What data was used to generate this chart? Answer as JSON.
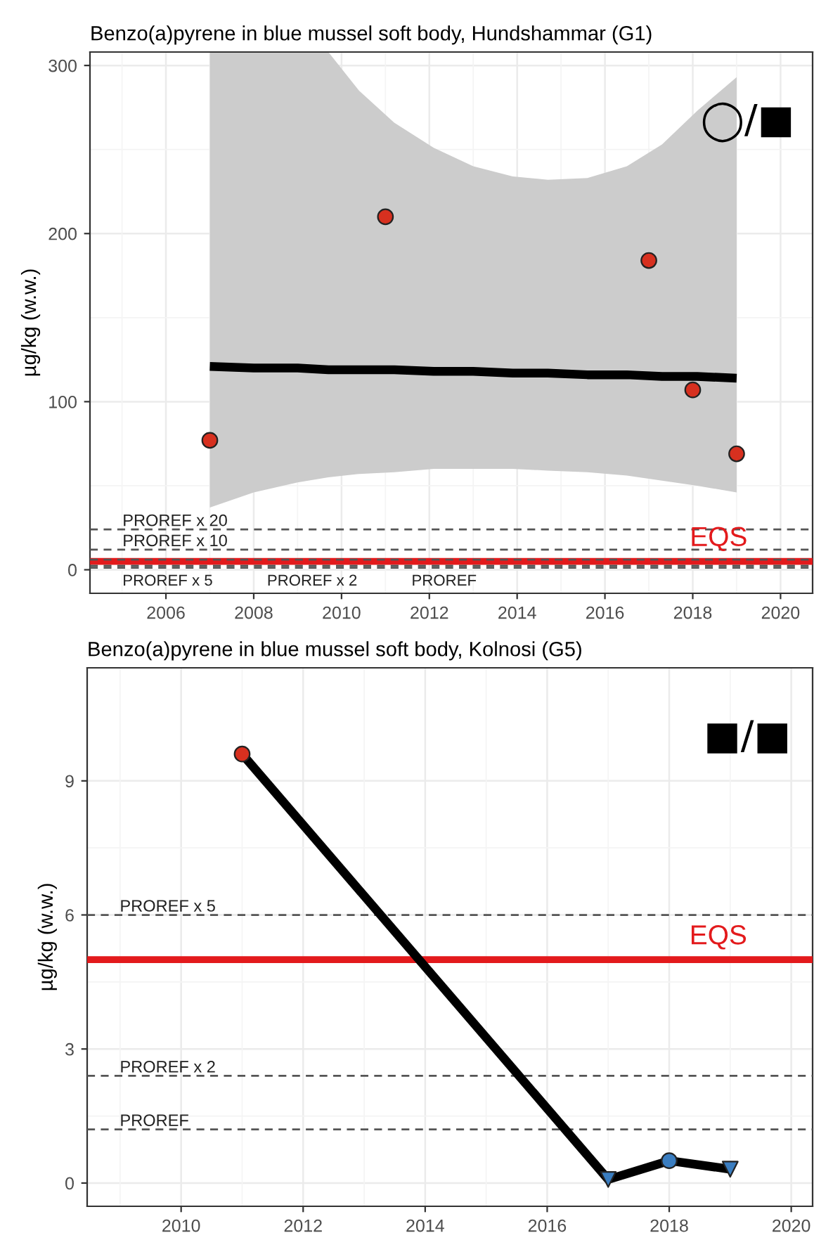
{
  "chart_data": [
    {
      "type": "scatter",
      "title": "Benzo(a)pyrene in blue mussel soft body, Hundshammar (G1)",
      "ylabel": "µg/kg (w.w.)",
      "xlim": [
        2004.27,
        2020.73
      ],
      "ylim": [
        -14,
        308
      ],
      "xticks": [
        2006,
        2008,
        2010,
        2012,
        2014,
        2016,
        2018,
        2020
      ],
      "yticks": [
        0,
        100,
        200,
        300
      ],
      "grid": true,
      "annotations": [
        "◯/■"
      ],
      "series": [
        {
          "type": "line",
          "color": "#000000",
          "marker": "none",
          "line_style": "solid",
          "x": [
            2007,
            2008,
            2009,
            2009.7,
            2010.4,
            2011.2,
            2012.1,
            2013,
            2013.9,
            2014.7,
            2015.6,
            2016.5,
            2017.3,
            2018.1,
            2019
          ],
          "values": [
            121,
            120,
            120,
            119,
            119,
            119,
            118,
            118,
            117,
            117,
            116,
            116,
            115,
            115,
            114
          ],
          "lower": [
            37,
            46,
            52,
            55,
            57,
            58,
            60,
            60,
            60,
            59,
            58,
            56,
            53,
            50,
            46
          ],
          "upper": [
            308,
            308,
            308,
            308,
            285,
            266,
            251,
            240,
            234,
            232,
            233,
            240,
            253,
            273,
            293
          ]
        },
        {
          "color": "#d7301f",
          "marker": "circle",
          "x": [
            2007,
            2011,
            2017,
            2018,
            2019
          ],
          "values": [
            77,
            210,
            184,
            107,
            69
          ]
        }
      ],
      "ref_lines": [
        {
          "axis": "y",
          "value": 24,
          "label": "PROREF x 20",
          "color": "#555555",
          "line_style": "dashed"
        },
        {
          "axis": "y",
          "value": 12,
          "label": "PROREF x 10",
          "color": "#555555",
          "line_style": "dashed"
        },
        {
          "axis": "y",
          "value": 6,
          "label": "PROREF x 5",
          "color": "#555555",
          "line_style": "dashed"
        },
        {
          "axis": "y",
          "value": 2.4,
          "label": "PROREF x 2",
          "color": "#555555",
          "line_style": "dashed"
        },
        {
          "axis": "y",
          "value": 1.2,
          "label": "PROREF",
          "color": "#555555",
          "line_style": "dashed"
        },
        {
          "axis": "y",
          "value": 5,
          "label": "EQS",
          "color": "#e31a1c",
          "line_style": "solid"
        }
      ]
    },
    {
      "type": "line",
      "title": "Benzo(a)pyrene in blue mussel soft body, Kolnosi (G5)",
      "ylabel": "µg/kg (w.w.)",
      "xlim": [
        2008.46,
        2020.35
      ],
      "ylim": [
        -0.52,
        11.53
      ],
      "xticks": [
        2010,
        2012,
        2014,
        2016,
        2018,
        2020
      ],
      "yticks": [
        0,
        3,
        6,
        9
      ],
      "grid": true,
      "annotations": [
        "■/■"
      ],
      "series": [
        {
          "color": "#000000",
          "marker": "none",
          "line_style": "solid",
          "x": [
            2011,
            2017,
            2018,
            2019
          ],
          "values": [
            9.6,
            0.08,
            0.5,
            0.31
          ]
        },
        {
          "type": "scatter",
          "color": "#d7301f",
          "marker": "circle",
          "x": [
            2011
          ],
          "values": [
            9.6
          ]
        },
        {
          "type": "scatter",
          "color": "#3a7dc0",
          "marker": "circle",
          "x": [
            2018
          ],
          "values": [
            0.5
          ]
        },
        {
          "type": "scatter",
          "color": "#3a7dc0",
          "marker": "triangle",
          "x": [
            2017,
            2019
          ],
          "values": [
            0.08,
            0.31
          ]
        }
      ],
      "ref_lines": [
        {
          "axis": "y",
          "value": 6,
          "label": "PROREF x 5",
          "color": "#555555",
          "line_style": "dashed"
        },
        {
          "axis": "y",
          "value": 2.4,
          "label": "PROREF x 2",
          "color": "#555555",
          "line_style": "dashed"
        },
        {
          "axis": "y",
          "value": 1.2,
          "label": "PROREF",
          "color": "#555555",
          "line_style": "dashed"
        },
        {
          "axis": "y",
          "value": 5,
          "label": "EQS",
          "color": "#e31a1c",
          "line_style": "solid"
        }
      ]
    }
  ]
}
